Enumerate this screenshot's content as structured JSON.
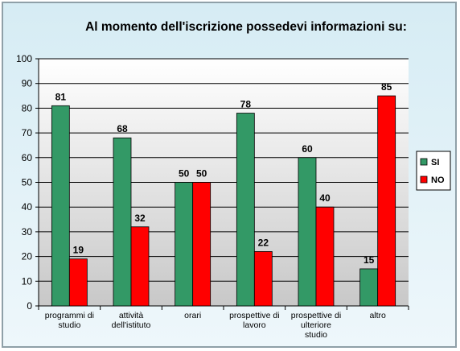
{
  "chart_data": {
    "type": "bar",
    "title": "Al momento dell'iscrizione possedevi informazioni su:",
    "categories": [
      [
        "programmi di",
        "studio"
      ],
      [
        "attività",
        "dell'istituto"
      ],
      [
        "orari"
      ],
      [
        "prospettive di",
        "lavoro"
      ],
      [
        "prospettive di",
        "ulteriore",
        "studio"
      ],
      [
        "altro"
      ]
    ],
    "series": [
      {
        "name": "SI",
        "color": "#339966",
        "values": [
          81,
          68,
          50,
          78,
          60,
          15
        ]
      },
      {
        "name": "NO",
        "color": "#ff0000",
        "values": [
          19,
          32,
          50,
          22,
          40,
          85
        ]
      }
    ],
    "ylim": [
      0,
      100
    ],
    "yticks": [
      0,
      10,
      20,
      30,
      40,
      50,
      60,
      70,
      80,
      90,
      100
    ],
    "grid": true,
    "legend": "right",
    "xlabel": "",
    "ylabel": ""
  }
}
